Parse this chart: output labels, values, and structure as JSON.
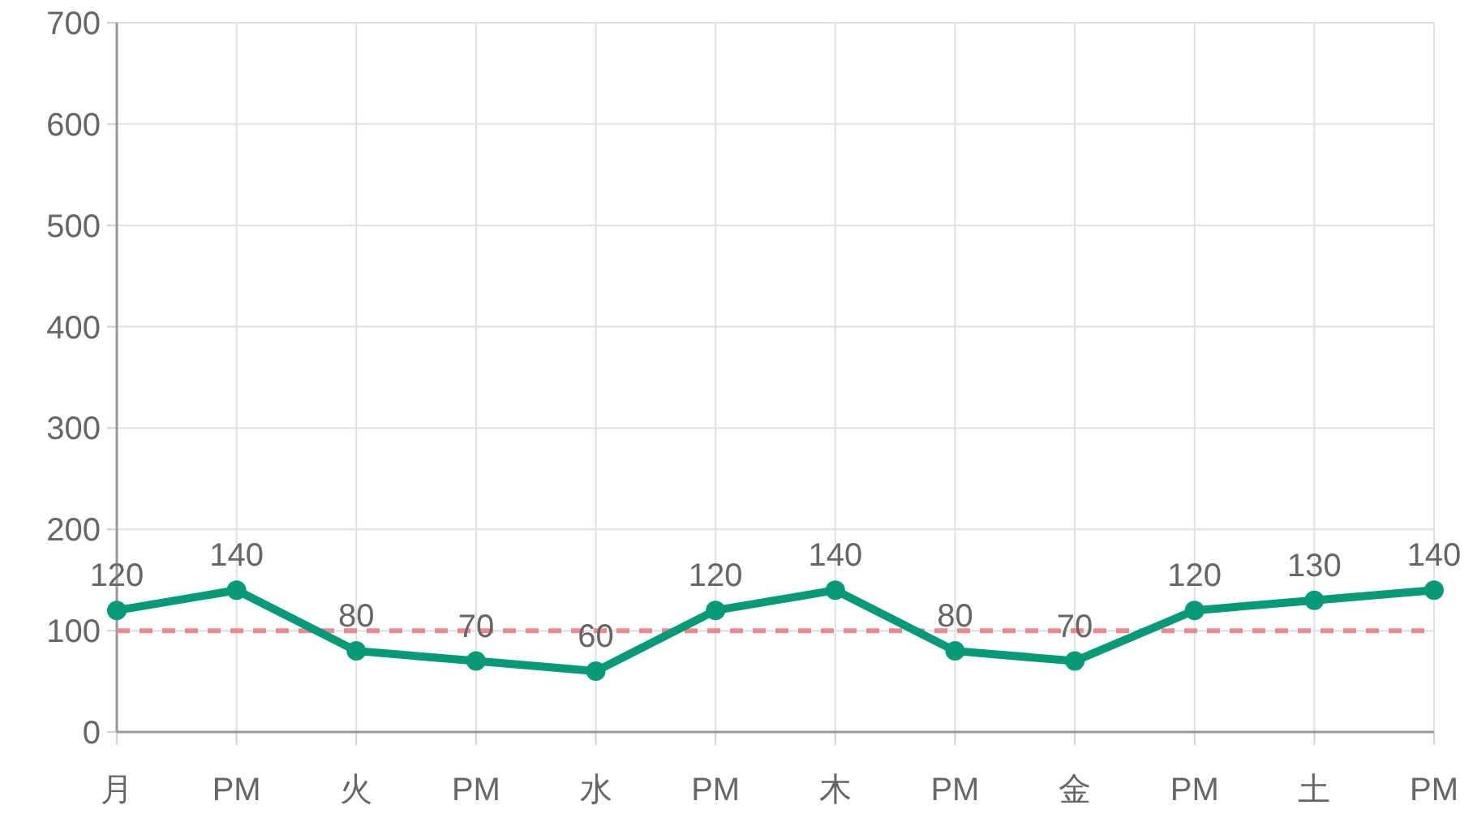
{
  "chart_data": {
    "type": "line",
    "categories": [
      "月",
      "PM",
      "火",
      "PM",
      "水",
      "PM",
      "木",
      "PM",
      "金",
      "PM",
      "土",
      "PM"
    ],
    "series": [
      {
        "color": "#079a78",
        "values": [
          120,
          140,
          80,
          70,
          60,
          120,
          140,
          80,
          70,
          120,
          130,
          140
        ]
      }
    ],
    "ylim": [
      0,
      700
    ],
    "yticks": [
      0,
      100,
      200,
      300,
      400,
      500,
      600,
      700
    ],
    "grid": true,
    "marker": "circle",
    "line_style": "solid",
    "data_labels": true,
    "ref_lines": [
      {
        "axis": "y",
        "value": 100,
        "color": "#e88a8f",
        "line_style": "dashed"
      }
    ]
  }
}
